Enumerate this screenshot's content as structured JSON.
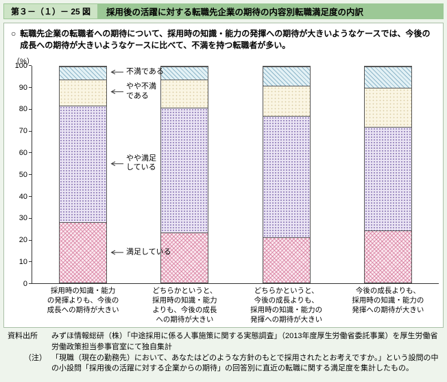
{
  "header": {
    "figure_label": "第３－（１）－ 25 図",
    "title": "採用後の活躍に対する転職先企業の期待の内容別転職満足度の内訳"
  },
  "lead": {
    "bullet": "○",
    "text": "転職先企業の転職者への期待について、採用時の知識・能力の発揮への期待が大きいようなケースでは、今後の成長への期待が大きいようなケースに比べて、不満を持つ転職者が多い。"
  },
  "chart_data": {
    "type": "bar",
    "stacked": true,
    "title": "採用後の活躍に対する転職先企業の期待の内容別転職満足度の内訳",
    "unit_label": "（%）",
    "ylim": [
      0,
      100
    ],
    "ytick_step": 10,
    "grid": false,
    "legend_position": "in-plot-annotations",
    "categories": [
      "採用時の知識・能力\nの発揮よりも、今後の\n成長への期待が大きい",
      "どちらかというと、\n採用時の知識・能力\nよりも、今後の成長\nへの期待が大きい",
      "どちらかというと、\n今後の成長よりも、\n採用時の知識・能力の\n発揮への期待が大きい",
      "今後の成長よりも、\n採用時の知識・能力の\n発揮への期待が大きい"
    ],
    "series": [
      {
        "name": "満足している",
        "values": [
          28,
          23,
          21,
          24
        ]
      },
      {
        "name": "やや満足している",
        "values": [
          54,
          58,
          56,
          48
        ]
      },
      {
        "name": "やや不満である",
        "values": [
          12,
          13,
          14,
          18
        ]
      },
      {
        "name": "不満である",
        "values": [
          6,
          6,
          9,
          10
        ]
      }
    ],
    "annotations": [
      {
        "label": "満足している"
      },
      {
        "label": "やや満足\nしている"
      },
      {
        "label": "やや不満\nである"
      },
      {
        "label": "不満である"
      }
    ],
    "colors": {
      "満足している": "#fbe9f0",
      "やや満足している": "#eae4f4",
      "やや不満である": "#faf5e3",
      "不満である": "#e3f1f5"
    }
  },
  "footer": {
    "source_label": "資料出所",
    "source_text": "みずほ情報総研（株）「中途採用に係る人事施策に関する実態調査」（2013年度厚生労働省委託事業）を厚生労働省労働政策担当参事官室にて独自集計",
    "note_label": "（注）",
    "note_text": "「現職（現在の勤務先）において、あなたはどのような方針のもとで採用されたとお考えですか。」という設問の中の小設問「採用後の活躍に対する企業からの期待」の回答別に直近の転職に関する満足度を集計したもの。"
  }
}
